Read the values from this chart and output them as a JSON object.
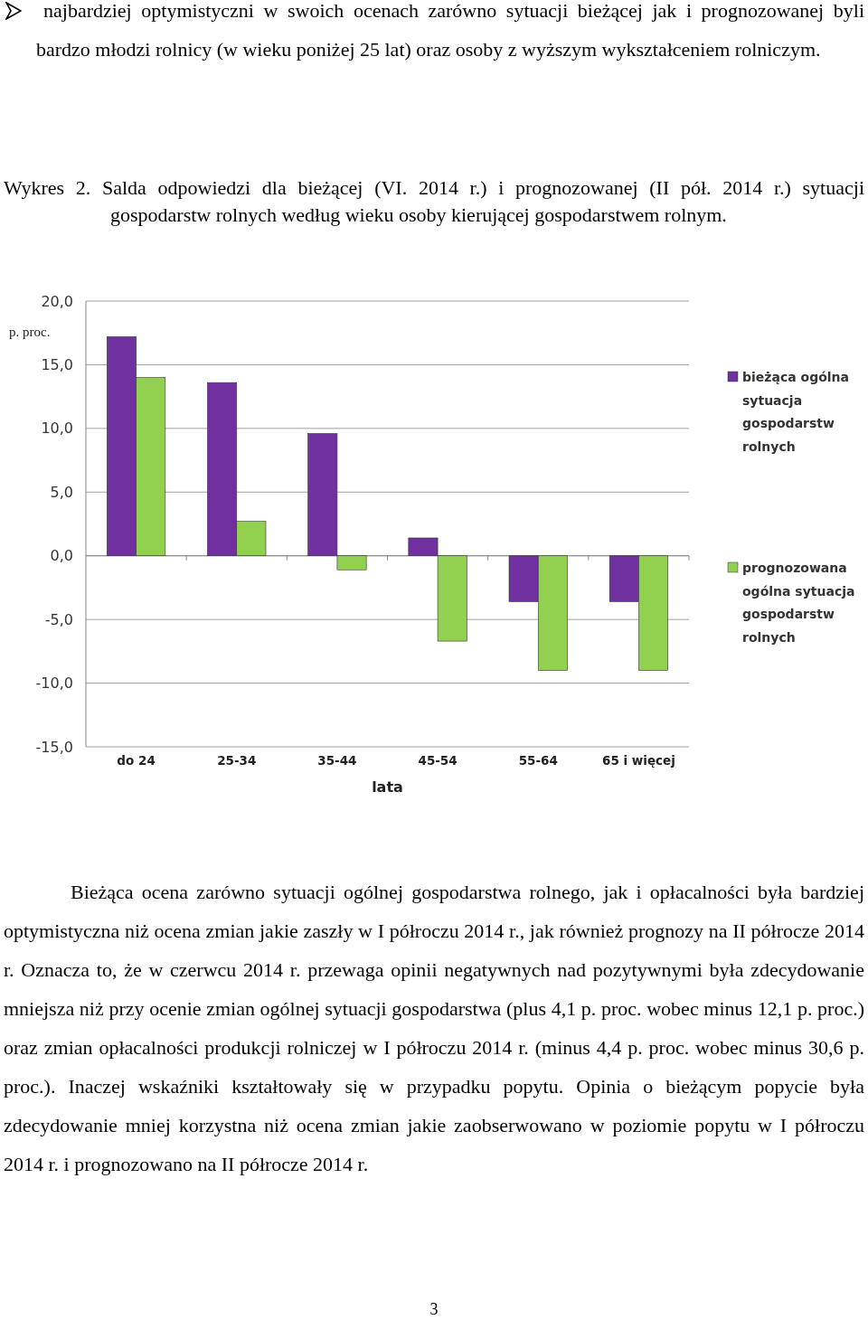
{
  "chart_data": {
    "type": "bar",
    "title": "Wykres 2. Salda odpowiedzi dla bieżącej (VI. 2014 r.) i prognozowanej (II pół. 2014 r.) sytuacji gospodarstw rolnych według wieku osoby kierującej gospodarstwem rolnym.",
    "xlabel": "lata",
    "ylabel": "p. proc.",
    "categories": [
      "do 24",
      "25-34",
      "35-44",
      "45-54",
      "55-64",
      "65 i więcej"
    ],
    "series": [
      {
        "name": "bieżąca ogólna sytuacja gospodarstw rolnych",
        "color": "#7030a0",
        "values": [
          17.2,
          13.6,
          9.6,
          1.4,
          -3.6,
          -3.6
        ]
      },
      {
        "name": "prognozowana ogólna sytuacja gospodarstw rolnych",
        "color": "#92d050",
        "values": [
          14.0,
          2.7,
          -1.1,
          -6.7,
          -9.0,
          -9.0
        ]
      }
    ],
    "ylim": [
      -15,
      20
    ],
    "yticks": [
      {
        "value": -15,
        "label": "-15,0"
      },
      {
        "value": -10,
        "label": "-10,0"
      },
      {
        "value": -5,
        "label": "-5,0"
      },
      {
        "value": 0,
        "label": "0,0"
      },
      {
        "value": 5,
        "label": "5,0"
      },
      {
        "value": 10,
        "label": "10,0"
      },
      {
        "value": 15,
        "label": "15,0"
      },
      {
        "value": 20,
        "label": "20,0"
      }
    ],
    "grid": "y",
    "legend": "right",
    "annotations": [
      "najbardziej optymistyczni w swoich ocenach zarówno sytuacji bieżącej jak i prognozowanej byli bardzo młodzi rolnicy (w wieku poniżej 25 lat) oraz osoby z wyższym wykształceniem rolniczym.",
      "Bieżąca ocena zarówno sytuacji ogólnej gospodarstwa rolnego, jak i opłacalności była bardziej optymistyczna niż ocena zmian jakie zaszły w I półroczu 2014 r., jak również prognozy na II półrocze 2014 r. Oznacza to, że w czerwcu 2014 r. przewaga opinii negatywnych nad pozytywnymi była zdecydowanie mniejsza niż przy ocenie zmian ogólnej sytuacji gospodarstwa (plus 4,1 p. proc. wobec minus 12,1 p. proc.) oraz zmian opłacalności produkcji rolniczej w I półroczu 2014 r. (minus 4,4 p. proc. wobec minus 30,6 p. proc.). Inaczej wskaźniki kształtowały się w przypadku popytu. Opinia o bieżącym popycie była zdecydowanie mniej korzystna niż ocena zmian jakie zaobserwowano w poziomie popytu w I półroczu 2014 r. i prognozowano na II półrocze 2014 r.",
      "3"
    ]
  }
}
